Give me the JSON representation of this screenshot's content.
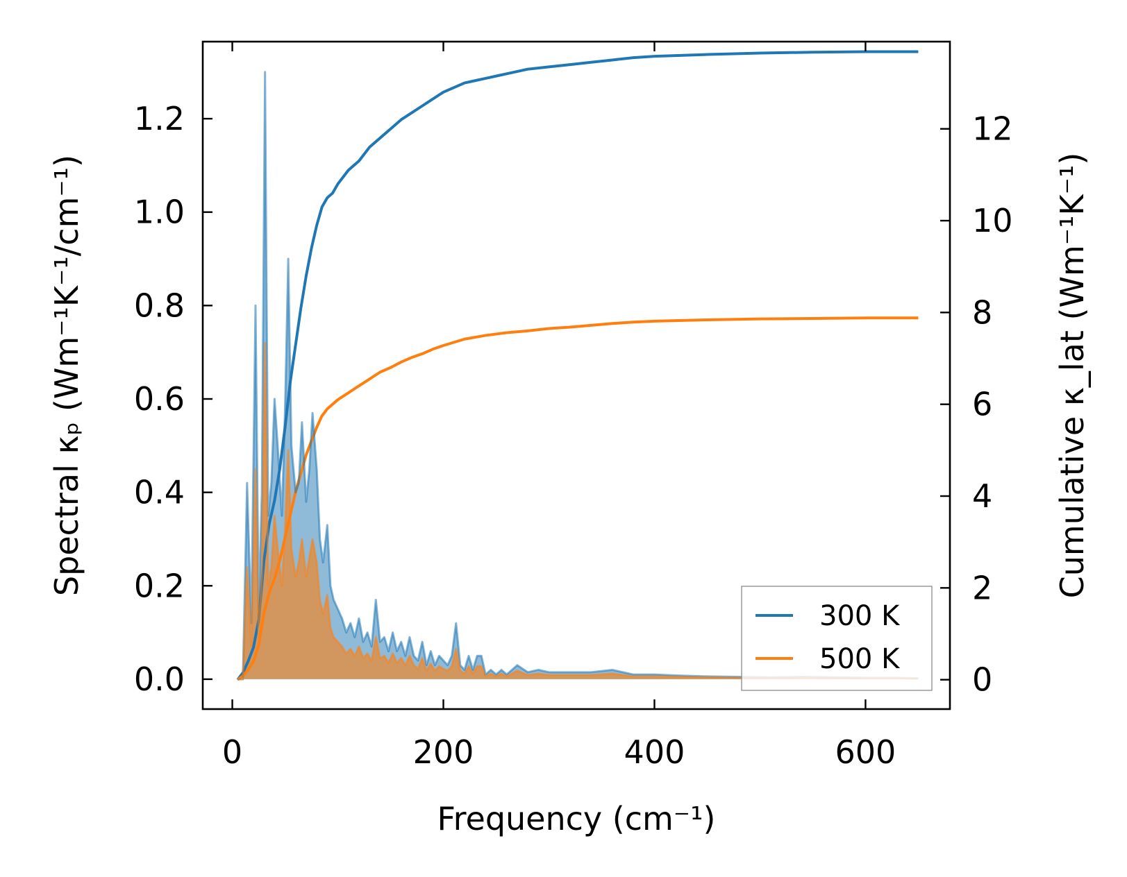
{
  "chart_data": {
    "type": "line",
    "xlabel": "Frequency (cm⁻¹)",
    "ylabel_left": "Spectral κₚ (Wm⁻¹K⁻¹/cm⁻¹)",
    "ylabel_right": "Cumulative κ_lat (Wm⁻¹K⁻¹)",
    "xlim": [
      -28,
      680
    ],
    "ylim_left": [
      -0.064,
      1.365
    ],
    "ylim_right": [
      -0.64,
      13.9
    ],
    "x_ticks": [
      0,
      200,
      400,
      600
    ],
    "y_left_ticks": [
      0.0,
      0.2,
      0.4,
      0.6,
      0.8,
      1.0,
      1.2
    ],
    "y_right_ticks": [
      0,
      2,
      4,
      6,
      8,
      10,
      12
    ],
    "x_tick_labels": [
      "0",
      "200",
      "400",
      "600"
    ],
    "y_left_tick_labels": [
      "0.0",
      "0.2",
      "0.4",
      "0.6",
      "0.8",
      "1.0",
      "1.2"
    ],
    "y_right_tick_labels": [
      "0",
      "2",
      "4",
      "6",
      "8",
      "10",
      "12"
    ],
    "legend": {
      "position": "lower-right",
      "entries": [
        "300 K",
        "500 K"
      ]
    },
    "colors": {
      "300K": "#1f77b4",
      "500K": "#ff7f0e",
      "300K_fill": "#1f77b4",
      "500K_fill": "#ff7f0e"
    },
    "grid": false,
    "series": [
      {
        "name": "300 K",
        "kind": "spectral",
        "axis": "left",
        "x": [
          5,
          10,
          14,
          18,
          22,
          25,
          28,
          31,
          34,
          37,
          40,
          43,
          47,
          50,
          53,
          56,
          60,
          63,
          66,
          70,
          73,
          76,
          80,
          83,
          86,
          90,
          93,
          96,
          100,
          104,
          108,
          112,
          116,
          120,
          124,
          128,
          132,
          136,
          140,
          144,
          148,
          152,
          156,
          160,
          164,
          168,
          172,
          176,
          180,
          184,
          188,
          192,
          196,
          200,
          204,
          208,
          212,
          216,
          220,
          224,
          228,
          232,
          236,
          240,
          245,
          250,
          255,
          260,
          265,
          270,
          280,
          290,
          300,
          320,
          340,
          360,
          380,
          400,
          420,
          450,
          480,
          510,
          540,
          570,
          600,
          630,
          650
        ],
        "y": [
          0.0,
          0.0,
          0.42,
          0.12,
          0.8,
          0.15,
          0.4,
          1.3,
          0.35,
          0.42,
          0.6,
          0.5,
          0.35,
          0.58,
          0.9,
          0.5,
          0.4,
          0.42,
          0.55,
          0.38,
          0.45,
          0.57,
          0.45,
          0.3,
          0.25,
          0.33,
          0.2,
          0.17,
          0.15,
          0.13,
          0.1,
          0.12,
          0.09,
          0.13,
          0.08,
          0.1,
          0.07,
          0.17,
          0.08,
          0.09,
          0.06,
          0.1,
          0.06,
          0.08,
          0.05,
          0.09,
          0.05,
          0.04,
          0.08,
          0.03,
          0.06,
          0.03,
          0.05,
          0.04,
          0.03,
          0.05,
          0.12,
          0.03,
          0.02,
          0.05,
          0.02,
          0.05,
          0.05,
          0.01,
          0.02,
          0.01,
          0.02,
          0.01,
          0.02,
          0.03,
          0.015,
          0.02,
          0.015,
          0.015,
          0.015,
          0.02,
          0.01,
          0.01,
          0.008,
          0.006,
          0.005,
          0.004,
          0.005,
          0.004,
          0.003,
          0.003,
          0.002
        ]
      },
      {
        "name": "500 K",
        "kind": "spectral",
        "axis": "left",
        "x": [
          5,
          10,
          14,
          18,
          22,
          25,
          28,
          31,
          34,
          37,
          40,
          43,
          47,
          50,
          53,
          56,
          60,
          63,
          66,
          70,
          73,
          76,
          80,
          83,
          86,
          90,
          93,
          96,
          100,
          104,
          108,
          112,
          116,
          120,
          124,
          128,
          132,
          136,
          140,
          144,
          148,
          152,
          156,
          160,
          164,
          168,
          172,
          176,
          180,
          184,
          188,
          192,
          196,
          200,
          204,
          208,
          212,
          216,
          220,
          224,
          228,
          232,
          236,
          240,
          245,
          250,
          255,
          260,
          265,
          270,
          280,
          290,
          300,
          320,
          340,
          360,
          380,
          400,
          420,
          450,
          480,
          510,
          540,
          570,
          600,
          630,
          650
        ],
        "y": [
          0.0,
          0.0,
          0.24,
          0.07,
          0.45,
          0.09,
          0.22,
          0.72,
          0.2,
          0.24,
          0.35,
          0.28,
          0.2,
          0.32,
          0.49,
          0.28,
          0.22,
          0.25,
          0.3,
          0.22,
          0.26,
          0.3,
          0.25,
          0.17,
          0.14,
          0.18,
          0.11,
          0.09,
          0.08,
          0.07,
          0.055,
          0.065,
          0.05,
          0.07,
          0.045,
          0.055,
          0.04,
          0.09,
          0.045,
          0.05,
          0.035,
          0.055,
          0.035,
          0.045,
          0.03,
          0.05,
          0.03,
          0.022,
          0.045,
          0.018,
          0.033,
          0.018,
          0.028,
          0.022,
          0.018,
          0.028,
          0.065,
          0.018,
          0.012,
          0.028,
          0.012,
          0.028,
          0.028,
          0.006,
          0.012,
          0.006,
          0.012,
          0.006,
          0.012,
          0.018,
          0.009,
          0.012,
          0.009,
          0.009,
          0.009,
          0.012,
          0.006,
          0.006,
          0.005,
          0.004,
          0.003,
          0.003,
          0.003,
          0.003,
          0.002,
          0.002,
          0.001
        ]
      },
      {
        "name": "300 K",
        "kind": "cumulative",
        "axis": "right",
        "x": [
          5,
          10,
          15,
          20,
          25,
          30,
          35,
          40,
          45,
          50,
          55,
          60,
          65,
          70,
          75,
          80,
          85,
          90,
          95,
          100,
          110,
          120,
          130,
          140,
          150,
          160,
          170,
          180,
          190,
          200,
          210,
          220,
          230,
          240,
          250,
          260,
          280,
          300,
          320,
          340,
          360,
          380,
          400,
          450,
          500,
          550,
          600,
          650
        ],
        "y": [
          0.0,
          0.15,
          0.4,
          0.7,
          1.3,
          2.6,
          3.4,
          3.9,
          4.6,
          5.5,
          6.5,
          7.3,
          8.1,
          8.8,
          9.4,
          9.9,
          10.3,
          10.5,
          10.6,
          10.8,
          11.1,
          11.3,
          11.6,
          11.8,
          12.0,
          12.2,
          12.35,
          12.5,
          12.65,
          12.8,
          12.9,
          13.0,
          13.05,
          13.1,
          13.15,
          13.2,
          13.3,
          13.35,
          13.4,
          13.45,
          13.5,
          13.55,
          13.58,
          13.62,
          13.65,
          13.67,
          13.68,
          13.68
        ]
      },
      {
        "name": "500 K",
        "kind": "cumulative",
        "axis": "right",
        "x": [
          5,
          10,
          15,
          20,
          25,
          30,
          35,
          40,
          45,
          50,
          55,
          60,
          65,
          70,
          75,
          80,
          85,
          90,
          95,
          100,
          110,
          120,
          130,
          140,
          150,
          160,
          170,
          180,
          190,
          200,
          210,
          220,
          230,
          240,
          250,
          260,
          280,
          300,
          320,
          340,
          360,
          380,
          400,
          450,
          500,
          550,
          600,
          650
        ],
        "y": [
          0.0,
          0.08,
          0.22,
          0.4,
          0.75,
          1.45,
          1.9,
          2.2,
          2.6,
          3.1,
          3.6,
          4.1,
          4.5,
          4.9,
          5.2,
          5.5,
          5.75,
          5.9,
          6.0,
          6.1,
          6.25,
          6.4,
          6.55,
          6.7,
          6.8,
          6.92,
          7.02,
          7.1,
          7.2,
          7.28,
          7.35,
          7.42,
          7.46,
          7.5,
          7.53,
          7.56,
          7.6,
          7.65,
          7.68,
          7.72,
          7.76,
          7.79,
          7.81,
          7.84,
          7.86,
          7.87,
          7.88,
          7.88
        ]
      }
    ]
  }
}
